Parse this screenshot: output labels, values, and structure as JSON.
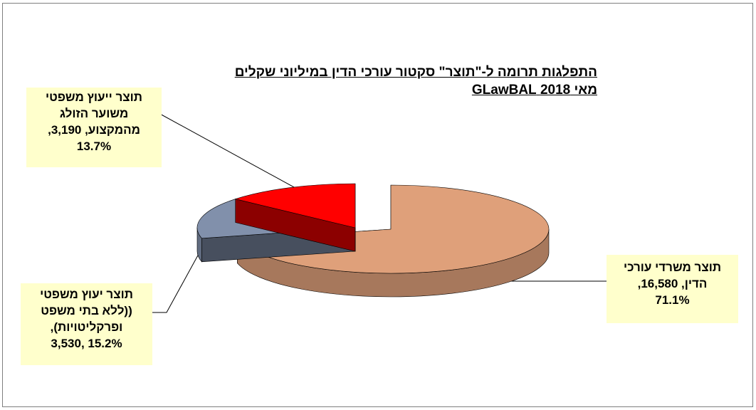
{
  "chart_data": {
    "type": "pie",
    "title": "התפלגות תרומה ל-\"תוצר\" סקטור עורכי הדין  במיליוני שקלים",
    "subtitle": "מאי 2018 GLawBAL",
    "slices": [
      {
        "label_lines": [
          "תוצר משרדי עורכי",
          "הדין, 16,580,",
          "71.1%"
        ],
        "value": 16580,
        "percent": 71.1,
        "color": "#dfa07a",
        "exploded": true
      },
      {
        "label_lines": [
          "תוצר יעוץ משפטי",
          "((ללא בתי משפט",
          "ופרקליטויות),",
          "15.2% ,3,530"
        ],
        "value": 3530,
        "percent": 15.2,
        "color": "#8190ab"
      },
      {
        "label_lines": [
          "תוצר ייעוץ משפטי",
          "משוער הזולג",
          "מהמקצוע, 3,190,",
          "13.7%"
        ],
        "value": 3190,
        "percent": 13.7,
        "color": "#ff0000"
      }
    ],
    "label_background": "#ffffcc",
    "legend": "none"
  }
}
